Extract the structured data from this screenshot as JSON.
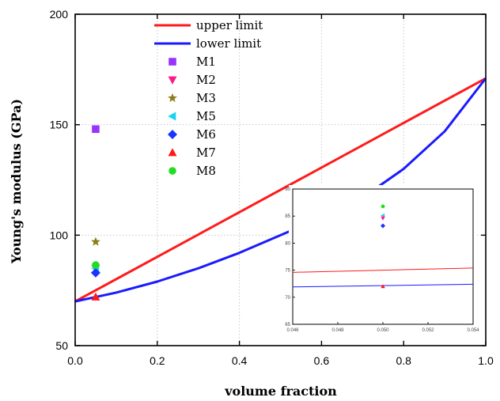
{
  "chart_data": [
    {
      "type": "line+scatter",
      "xlabel": "volume fraction",
      "ylabel": "Young's modulus (GPa)",
      "xlim": [
        0.0,
        1.0
      ],
      "ylim": [
        50,
        200
      ],
      "x_ticks": [
        "0.0",
        "0.2",
        "0.4",
        "0.6",
        "0.8",
        "1.0"
      ],
      "y_ticks": [
        "50",
        "100",
        "150",
        "200"
      ],
      "grid": "dotted",
      "legend_position": "top-center",
      "series": [
        {
          "name": "upper limit",
          "kind": "line",
          "color": "#ff1a1a",
          "x": [
            0.0,
            1.0
          ],
          "y": [
            70,
            171
          ]
        },
        {
          "name": "lower limit",
          "kind": "line",
          "color": "#1a1aff",
          "x": [
            0.0,
            0.1,
            0.2,
            0.3,
            0.4,
            0.5,
            0.6,
            0.7,
            0.8,
            0.9,
            1.0
          ],
          "y": [
            70,
            74,
            79,
            85,
            92,
            100,
            108,
            117,
            130,
            147,
            171
          ]
        },
        {
          "name": "M1",
          "kind": "marker",
          "marker": "square",
          "color": "#9933ff",
          "x": [
            0.05
          ],
          "y": [
            148
          ]
        },
        {
          "name": "M2",
          "kind": "marker",
          "marker": "triangle-down",
          "color": "#ff1a8c",
          "x": [
            0.05
          ],
          "y": [
            85
          ]
        },
        {
          "name": "M3",
          "kind": "marker",
          "marker": "star",
          "color": "#8b7d1a",
          "x": [
            0.05
          ],
          "y": [
            97
          ]
        },
        {
          "name": "M5",
          "kind": "marker",
          "marker": "triangle-left",
          "color": "#19d3f0",
          "x": [
            0.05
          ],
          "y": [
            85
          ]
        },
        {
          "name": "M6",
          "kind": "marker",
          "marker": "diamond",
          "color": "#1a33ff",
          "x": [
            0.05
          ],
          "y": [
            83
          ]
        },
        {
          "name": "M7",
          "kind": "marker",
          "marker": "triangle-up",
          "color": "#ff1a1a",
          "x": [
            0.05
          ],
          "y": [
            72
          ]
        },
        {
          "name": "M8",
          "kind": "marker",
          "marker": "circle",
          "color": "#22dd22",
          "x": [
            0.05
          ],
          "y": [
            86.5
          ]
        }
      ]
    },
    {
      "type": "line+scatter",
      "role": "inset",
      "xlim": [
        0.046,
        0.054
      ],
      "ylim": [
        65,
        90
      ],
      "x_ticks": [
        "0.046",
        "0.048",
        "0.050",
        "0.052",
        "0.054"
      ],
      "y_ticks": [
        "65",
        "70",
        "75",
        "80",
        "85",
        "90"
      ],
      "series": [
        {
          "kind": "line",
          "color": "#ff1a1a",
          "x": [
            0.046,
            0.054
          ],
          "y": [
            74.6,
            75.4
          ]
        },
        {
          "kind": "line",
          "color": "#1a1aff",
          "x": [
            0.046,
            0.054
          ],
          "y": [
            71.9,
            72.4
          ]
        },
        {
          "kind": "marker",
          "marker": "circle",
          "color": "#22dd22",
          "x": [
            0.05
          ],
          "y": [
            86.8
          ]
        },
        {
          "kind": "marker",
          "marker": "triangle-left",
          "color": "#19d3f0",
          "x": [
            0.05
          ],
          "y": [
            85.1
          ]
        },
        {
          "kind": "marker",
          "marker": "triangle-down",
          "color": "#ff1a8c",
          "x": [
            0.05
          ],
          "y": [
            84.6
          ]
        },
        {
          "kind": "marker",
          "marker": "diamond",
          "color": "#1a33ff",
          "x": [
            0.05
          ],
          "y": [
            83.2
          ]
        },
        {
          "kind": "marker",
          "marker": "triangle-up",
          "color": "#ff1a1a",
          "x": [
            0.05
          ],
          "y": [
            72.0
          ]
        }
      ]
    }
  ]
}
